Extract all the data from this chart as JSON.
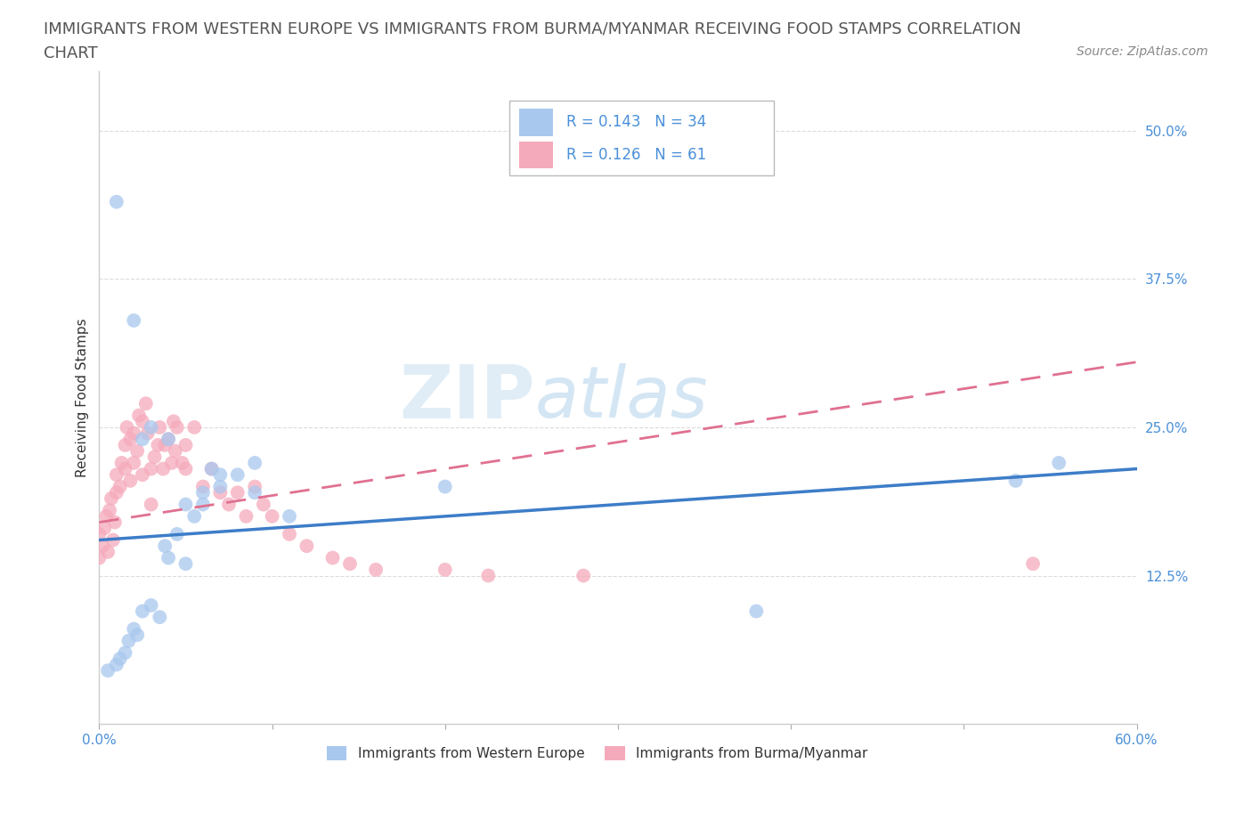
{
  "title_line1": "IMMIGRANTS FROM WESTERN EUROPE VS IMMIGRANTS FROM BURMA/MYANMAR RECEIVING FOOD STAMPS CORRELATION",
  "title_line2": "CHART",
  "source_text": "Source: ZipAtlas.com",
  "xlabel": "Immigrants from Western Europe",
  "ylabel_label": "Immigrants from Burma/Myanmar",
  "ylabel": "Receiving Food Stamps",
  "xlim": [
    0.0,
    0.6
  ],
  "ylim": [
    0.0,
    0.55
  ],
  "ytick_labels": [
    "12.5%",
    "25.0%",
    "37.5%",
    "50.0%"
  ],
  "ytick_values": [
    0.125,
    0.25,
    0.375,
    0.5
  ],
  "watermark": "ZIPatlas",
  "legend_R1": "R = 0.143",
  "legend_N1": "N = 34",
  "legend_R2": "R = 0.126",
  "legend_N2": "N = 61",
  "blue_color": "#a8c8ee",
  "pink_color": "#f5aabb",
  "blue_line_color": "#3d7dc8",
  "pink_line_color": "#e07090",
  "title_color": "#555555",
  "tick_color": "#4a90d9",
  "source_color": "#888888",
  "label_color": "#333333",
  "grid_color": "#cccccc",
  "legend_text_color": "#4a90d9",
  "title_fontsize": 13,
  "source_fontsize": 10,
  "label_fontsize": 11,
  "tick_fontsize": 11,
  "legend_fontsize": 12,
  "blue_scatter_x": [
    0.005,
    0.01,
    0.012,
    0.015,
    0.017,
    0.02,
    0.022,
    0.025,
    0.03,
    0.035,
    0.038,
    0.04,
    0.045,
    0.05,
    0.055,
    0.06,
    0.065,
    0.07,
    0.08,
    0.09,
    0.01,
    0.02,
    0.025,
    0.03,
    0.04,
    0.05,
    0.06,
    0.07,
    0.09,
    0.11,
    0.2,
    0.38,
    0.53,
    0.555
  ],
  "blue_scatter_y": [
    0.045,
    0.05,
    0.055,
    0.06,
    0.07,
    0.08,
    0.075,
    0.095,
    0.1,
    0.09,
    0.15,
    0.14,
    0.16,
    0.135,
    0.175,
    0.195,
    0.215,
    0.2,
    0.21,
    0.22,
    0.44,
    0.34,
    0.24,
    0.25,
    0.24,
    0.185,
    0.185,
    0.21,
    0.195,
    0.175,
    0.2,
    0.095,
    0.205,
    0.22
  ],
  "pink_scatter_x": [
    0.0,
    0.0,
    0.002,
    0.003,
    0.004,
    0.005,
    0.006,
    0.007,
    0.008,
    0.009,
    0.01,
    0.01,
    0.012,
    0.013,
    0.015,
    0.015,
    0.016,
    0.018,
    0.018,
    0.02,
    0.02,
    0.022,
    0.023,
    0.025,
    0.025,
    0.027,
    0.028,
    0.03,
    0.03,
    0.032,
    0.034,
    0.035,
    0.037,
    0.038,
    0.04,
    0.042,
    0.043,
    0.044,
    0.045,
    0.048,
    0.05,
    0.05,
    0.055,
    0.06,
    0.065,
    0.07,
    0.075,
    0.08,
    0.085,
    0.09,
    0.095,
    0.1,
    0.11,
    0.12,
    0.135,
    0.145,
    0.16,
    0.2,
    0.225,
    0.28,
    0.54
  ],
  "pink_scatter_y": [
    0.14,
    0.16,
    0.15,
    0.165,
    0.175,
    0.145,
    0.18,
    0.19,
    0.155,
    0.17,
    0.195,
    0.21,
    0.2,
    0.22,
    0.215,
    0.235,
    0.25,
    0.205,
    0.24,
    0.22,
    0.245,
    0.23,
    0.26,
    0.21,
    0.255,
    0.27,
    0.245,
    0.185,
    0.215,
    0.225,
    0.235,
    0.25,
    0.215,
    0.235,
    0.24,
    0.22,
    0.255,
    0.23,
    0.25,
    0.22,
    0.235,
    0.215,
    0.25,
    0.2,
    0.215,
    0.195,
    0.185,
    0.195,
    0.175,
    0.2,
    0.185,
    0.175,
    0.16,
    0.15,
    0.14,
    0.135,
    0.13,
    0.13,
    0.125,
    0.125,
    0.135
  ],
  "blue_trend_x": [
    0.0,
    0.6
  ],
  "blue_trend_y": [
    0.155,
    0.215
  ],
  "pink_trend_x": [
    0.0,
    0.6
  ],
  "pink_trend_y": [
    0.17,
    0.305
  ]
}
